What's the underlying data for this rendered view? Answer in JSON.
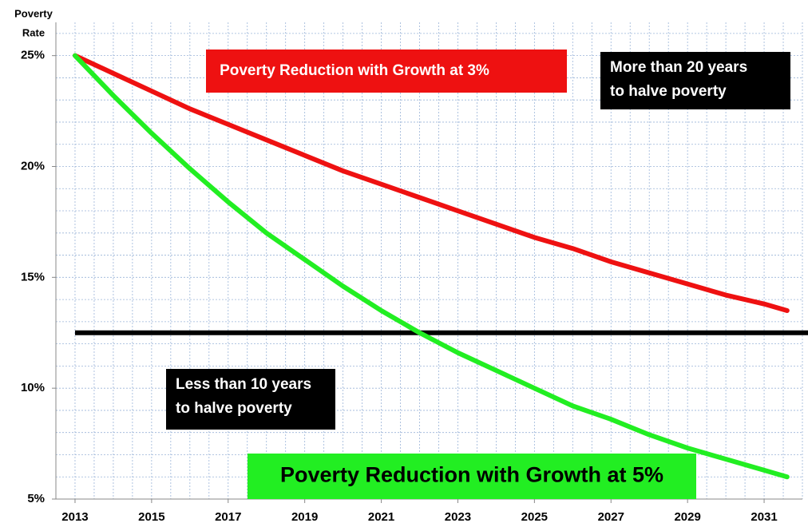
{
  "chart_data": {
    "type": "line",
    "y_axis_label": [
      "Poverty",
      "Rate"
    ],
    "x": [
      2013,
      2014,
      2015,
      2016,
      2017,
      2018,
      2019,
      2020,
      2021,
      2022,
      2023,
      2024,
      2025,
      2026,
      2027,
      2028,
      2029,
      2030,
      2031,
      2031.6
    ],
    "series": [
      {
        "name": "Poverty Reduction with Growth at 3%",
        "color": "#ee1111",
        "values": [
          25,
          24.2,
          23.4,
          22.6,
          21.9,
          21.2,
          20.5,
          19.8,
          19.2,
          18.6,
          18.0,
          17.4,
          16.8,
          16.3,
          15.7,
          15.2,
          14.7,
          14.2,
          13.8,
          13.5
        ]
      },
      {
        "name": "Poverty Reduction with Growth at 5%",
        "color": "#22ee22",
        "values": [
          25,
          23.2,
          21.5,
          19.9,
          18.4,
          17.0,
          15.8,
          14.6,
          13.5,
          12.5,
          11.6,
          10.8,
          10.0,
          9.2,
          8.6,
          7.9,
          7.3,
          6.8,
          6.3,
          6.0
        ]
      }
    ],
    "reference_line": 12.5,
    "annotations": [
      {
        "lines": [
          "More than 20 years",
          "to halve poverty"
        ],
        "color": "#000000"
      },
      {
        "lines": [
          "Less than 10 years",
          "to halve poverty"
        ],
        "color": "#000000"
      }
    ],
    "xlim": [
      2012.5,
      2032
    ],
    "ylim": [
      5,
      26.5
    ],
    "xticks": [
      2013,
      2015,
      2017,
      2019,
      2021,
      2023,
      2025,
      2027,
      2029,
      2031
    ],
    "yticks": [
      {
        "value": 5,
        "label": "5%"
      },
      {
        "value": 10,
        "label": "10%"
      },
      {
        "value": 15,
        "label": "15%"
      },
      {
        "value": 20,
        "label": "20%"
      },
      {
        "value": 25,
        "label": "25%"
      }
    ],
    "xgrid": [
      2013,
      2013.5,
      2014,
      2014.5,
      2015,
      2015.5,
      2016,
      2016.5,
      2017,
      2017.5,
      2018,
      2018.5,
      2019,
      2019.5,
      2020,
      2020.5,
      2021,
      2021.5,
      2022,
      2022.5,
      2023,
      2023.5,
      2024,
      2024.5,
      2025,
      2025.5,
      2026,
      2026.5,
      2027,
      2027.5,
      2028,
      2028.5,
      2029,
      2029.5,
      2030,
      2030.5,
      2031,
      2031.5,
      2032
    ],
    "ygrid": [
      6,
      7,
      8,
      9,
      10,
      11,
      12,
      13,
      14,
      15,
      16,
      17,
      18,
      19,
      20,
      21,
      22,
      23,
      24,
      25,
      26
    ],
    "grid": true
  }
}
